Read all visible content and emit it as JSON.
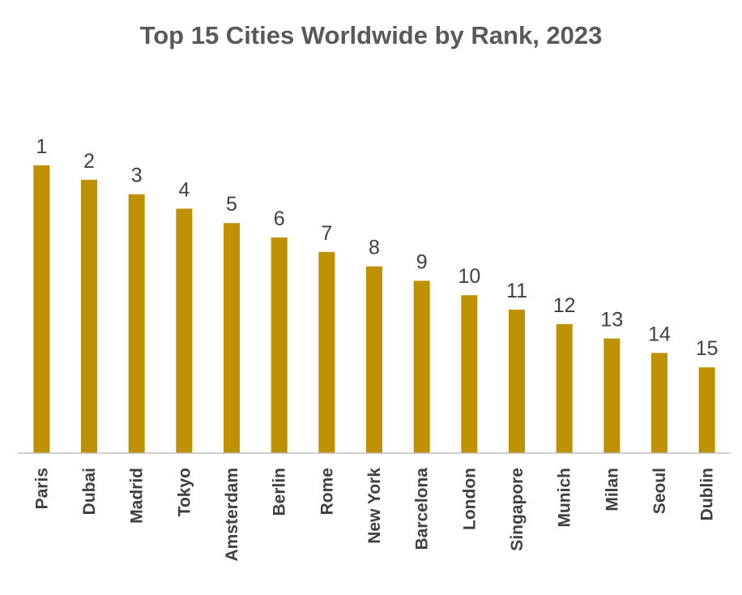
{
  "chart_data": {
    "type": "bar",
    "title": "Top 15 Cities Worldwide by Rank, 2023",
    "xlabel": "",
    "ylabel": "",
    "categories": [
      "Paris",
      "Dubai",
      "Madrid",
      "Tokyo",
      "Amsterdam",
      "Berlin",
      "Rome",
      "New York",
      "Barcelona",
      "London",
      "Singapore",
      "Munich",
      "Milan",
      "Seoul",
      "Dublin"
    ],
    "values": [
      1,
      2,
      3,
      4,
      5,
      6,
      7,
      8,
      9,
      10,
      11,
      12,
      13,
      14,
      15
    ],
    "data_labels": [
      "1",
      "2",
      "3",
      "4",
      "5",
      "6",
      "7",
      "8",
      "9",
      "10",
      "11",
      "12",
      "13",
      "14",
      "15"
    ],
    "note": "Bar height decreases as rank increases (rank 1 tallest)",
    "bar_color": "#BF9000",
    "grid": false,
    "legend": "none"
  }
}
